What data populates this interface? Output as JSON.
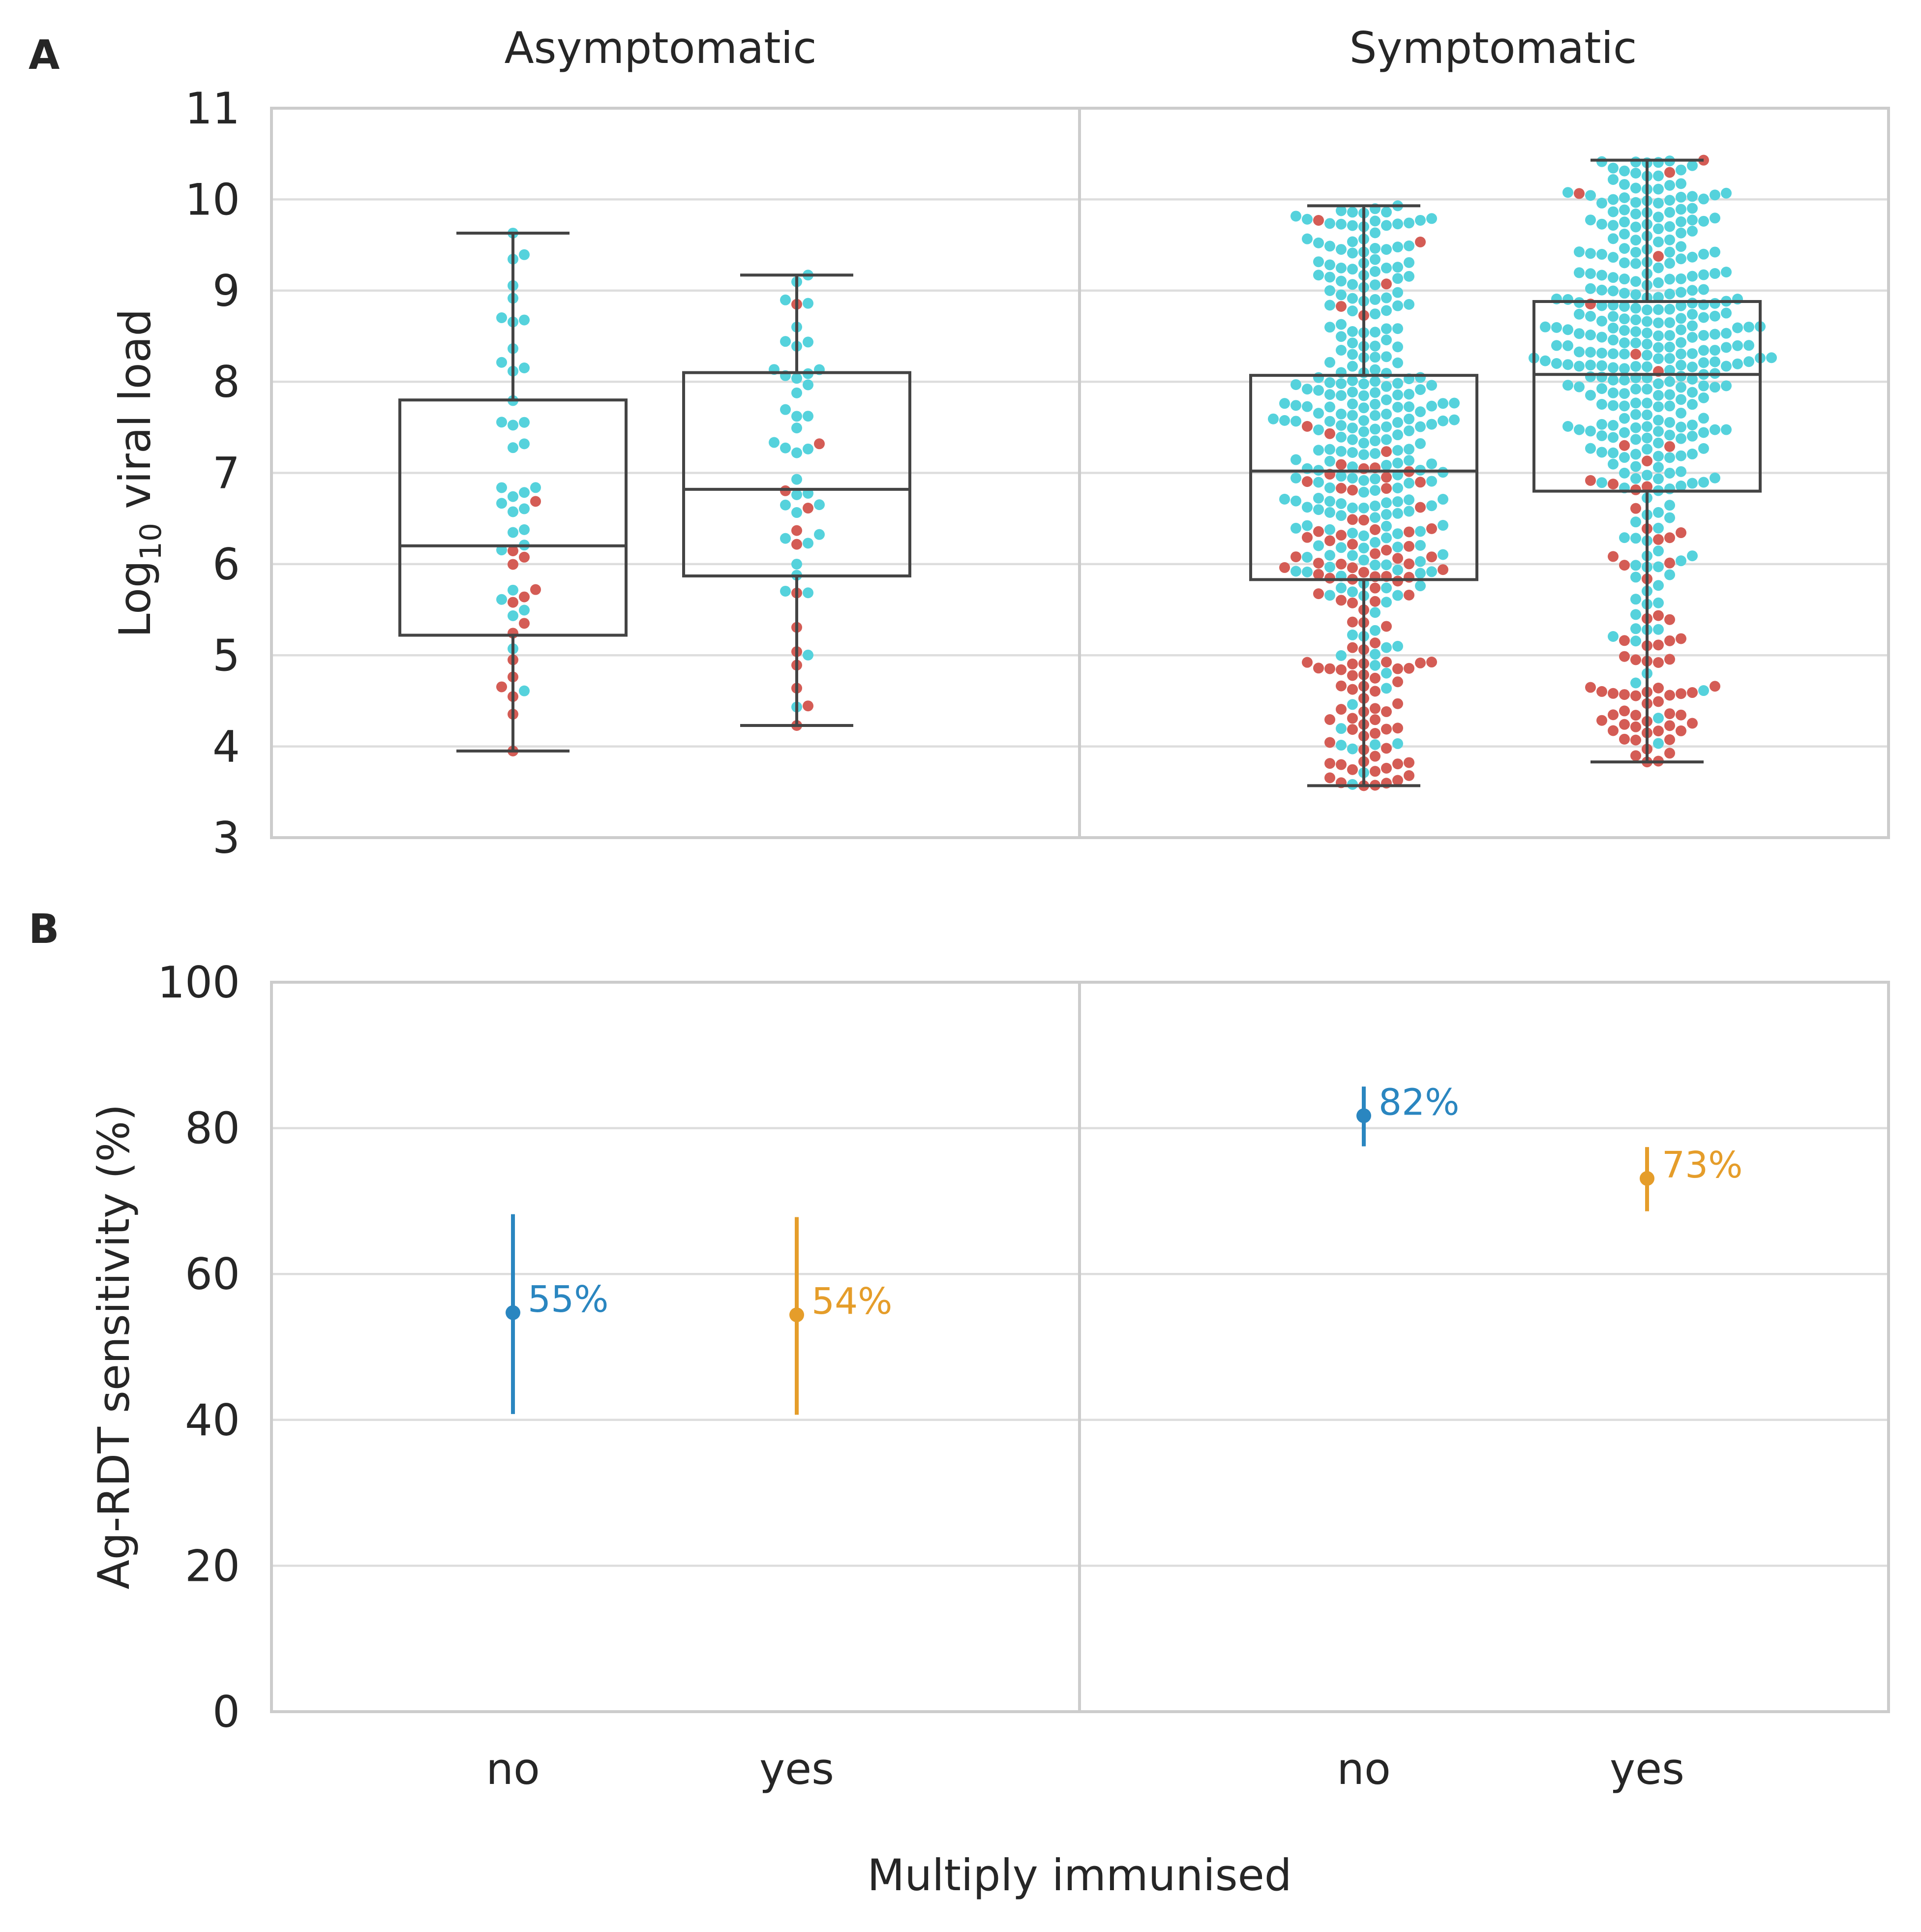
{
  "panels": {
    "a": {
      "letter": "A",
      "ylabel_main": "Log",
      "ylabel_sub": "10",
      "ylabel_rest": " viral load"
    },
    "b": {
      "letter": "B",
      "ylabel": "Ag-RDT sensitivity (%)"
    }
  },
  "columns": [
    "Asymptomatic",
    "Symptomatic"
  ],
  "xlabel": "Multiply immunised",
  "colors": {
    "dot_positive": "#55d2dc",
    "dot_negative": "#d45c55",
    "series_no": "#2a86c0",
    "series_yes": "#e59d2a"
  },
  "chart_data": [
    {
      "type": "box",
      "panel": "A",
      "ylim": [
        3,
        11
      ],
      "yticks": [
        "3",
        "4",
        "5",
        "6",
        "7",
        "8",
        "9",
        "10",
        "11"
      ],
      "categories": [
        "no",
        "yes"
      ],
      "facets": [
        "Asymptomatic",
        "Symptomatic"
      ],
      "boxes": [
        {
          "facet": "Asymptomatic",
          "category": "no",
          "whisker_low": 3.95,
          "q1": 5.22,
          "median": 6.2,
          "q3": 7.8,
          "whisker_high": 9.63,
          "n_approx": 48
        },
        {
          "facet": "Asymptomatic",
          "category": "yes",
          "whisker_low": 4.23,
          "q1": 5.87,
          "median": 6.82,
          "q3": 8.1,
          "whisker_high": 9.17,
          "n_approx": 49
        },
        {
          "facet": "Symptomatic",
          "category": "no",
          "whisker_low": 3.57,
          "q1": 5.83,
          "median": 7.02,
          "q3": 8.07,
          "whisker_high": 9.93,
          "n_approx": 380
        },
        {
          "facet": "Symptomatic",
          "category": "yes",
          "whisker_low": 3.83,
          "q1": 6.8,
          "median": 8.08,
          "q3": 8.88,
          "whisker_high": 10.43,
          "n_approx": 400
        }
      ]
    },
    {
      "type": "errorbar",
      "panel": "B",
      "ylim": [
        0,
        100
      ],
      "yticks": [
        "0",
        "20",
        "40",
        "60",
        "80",
        "100"
      ],
      "categories": [
        "no",
        "yes"
      ],
      "facets": [
        "Asymptomatic",
        "Symptomatic"
      ],
      "points": [
        {
          "facet": "Asymptomatic",
          "category": "no",
          "value": 54.7,
          "low": 40.8,
          "high": 68.2,
          "label": "55%"
        },
        {
          "facet": "Asymptomatic",
          "category": "yes",
          "value": 54.4,
          "low": 40.7,
          "high": 67.8,
          "label": "54%"
        },
        {
          "facet": "Symptomatic",
          "category": "no",
          "value": 81.7,
          "low": 77.5,
          "high": 85.7,
          "label": "82%"
        },
        {
          "facet": "Symptomatic",
          "category": "yes",
          "value": 73.1,
          "low": 68.6,
          "high": 77.4,
          "label": "73%"
        }
      ]
    }
  ]
}
